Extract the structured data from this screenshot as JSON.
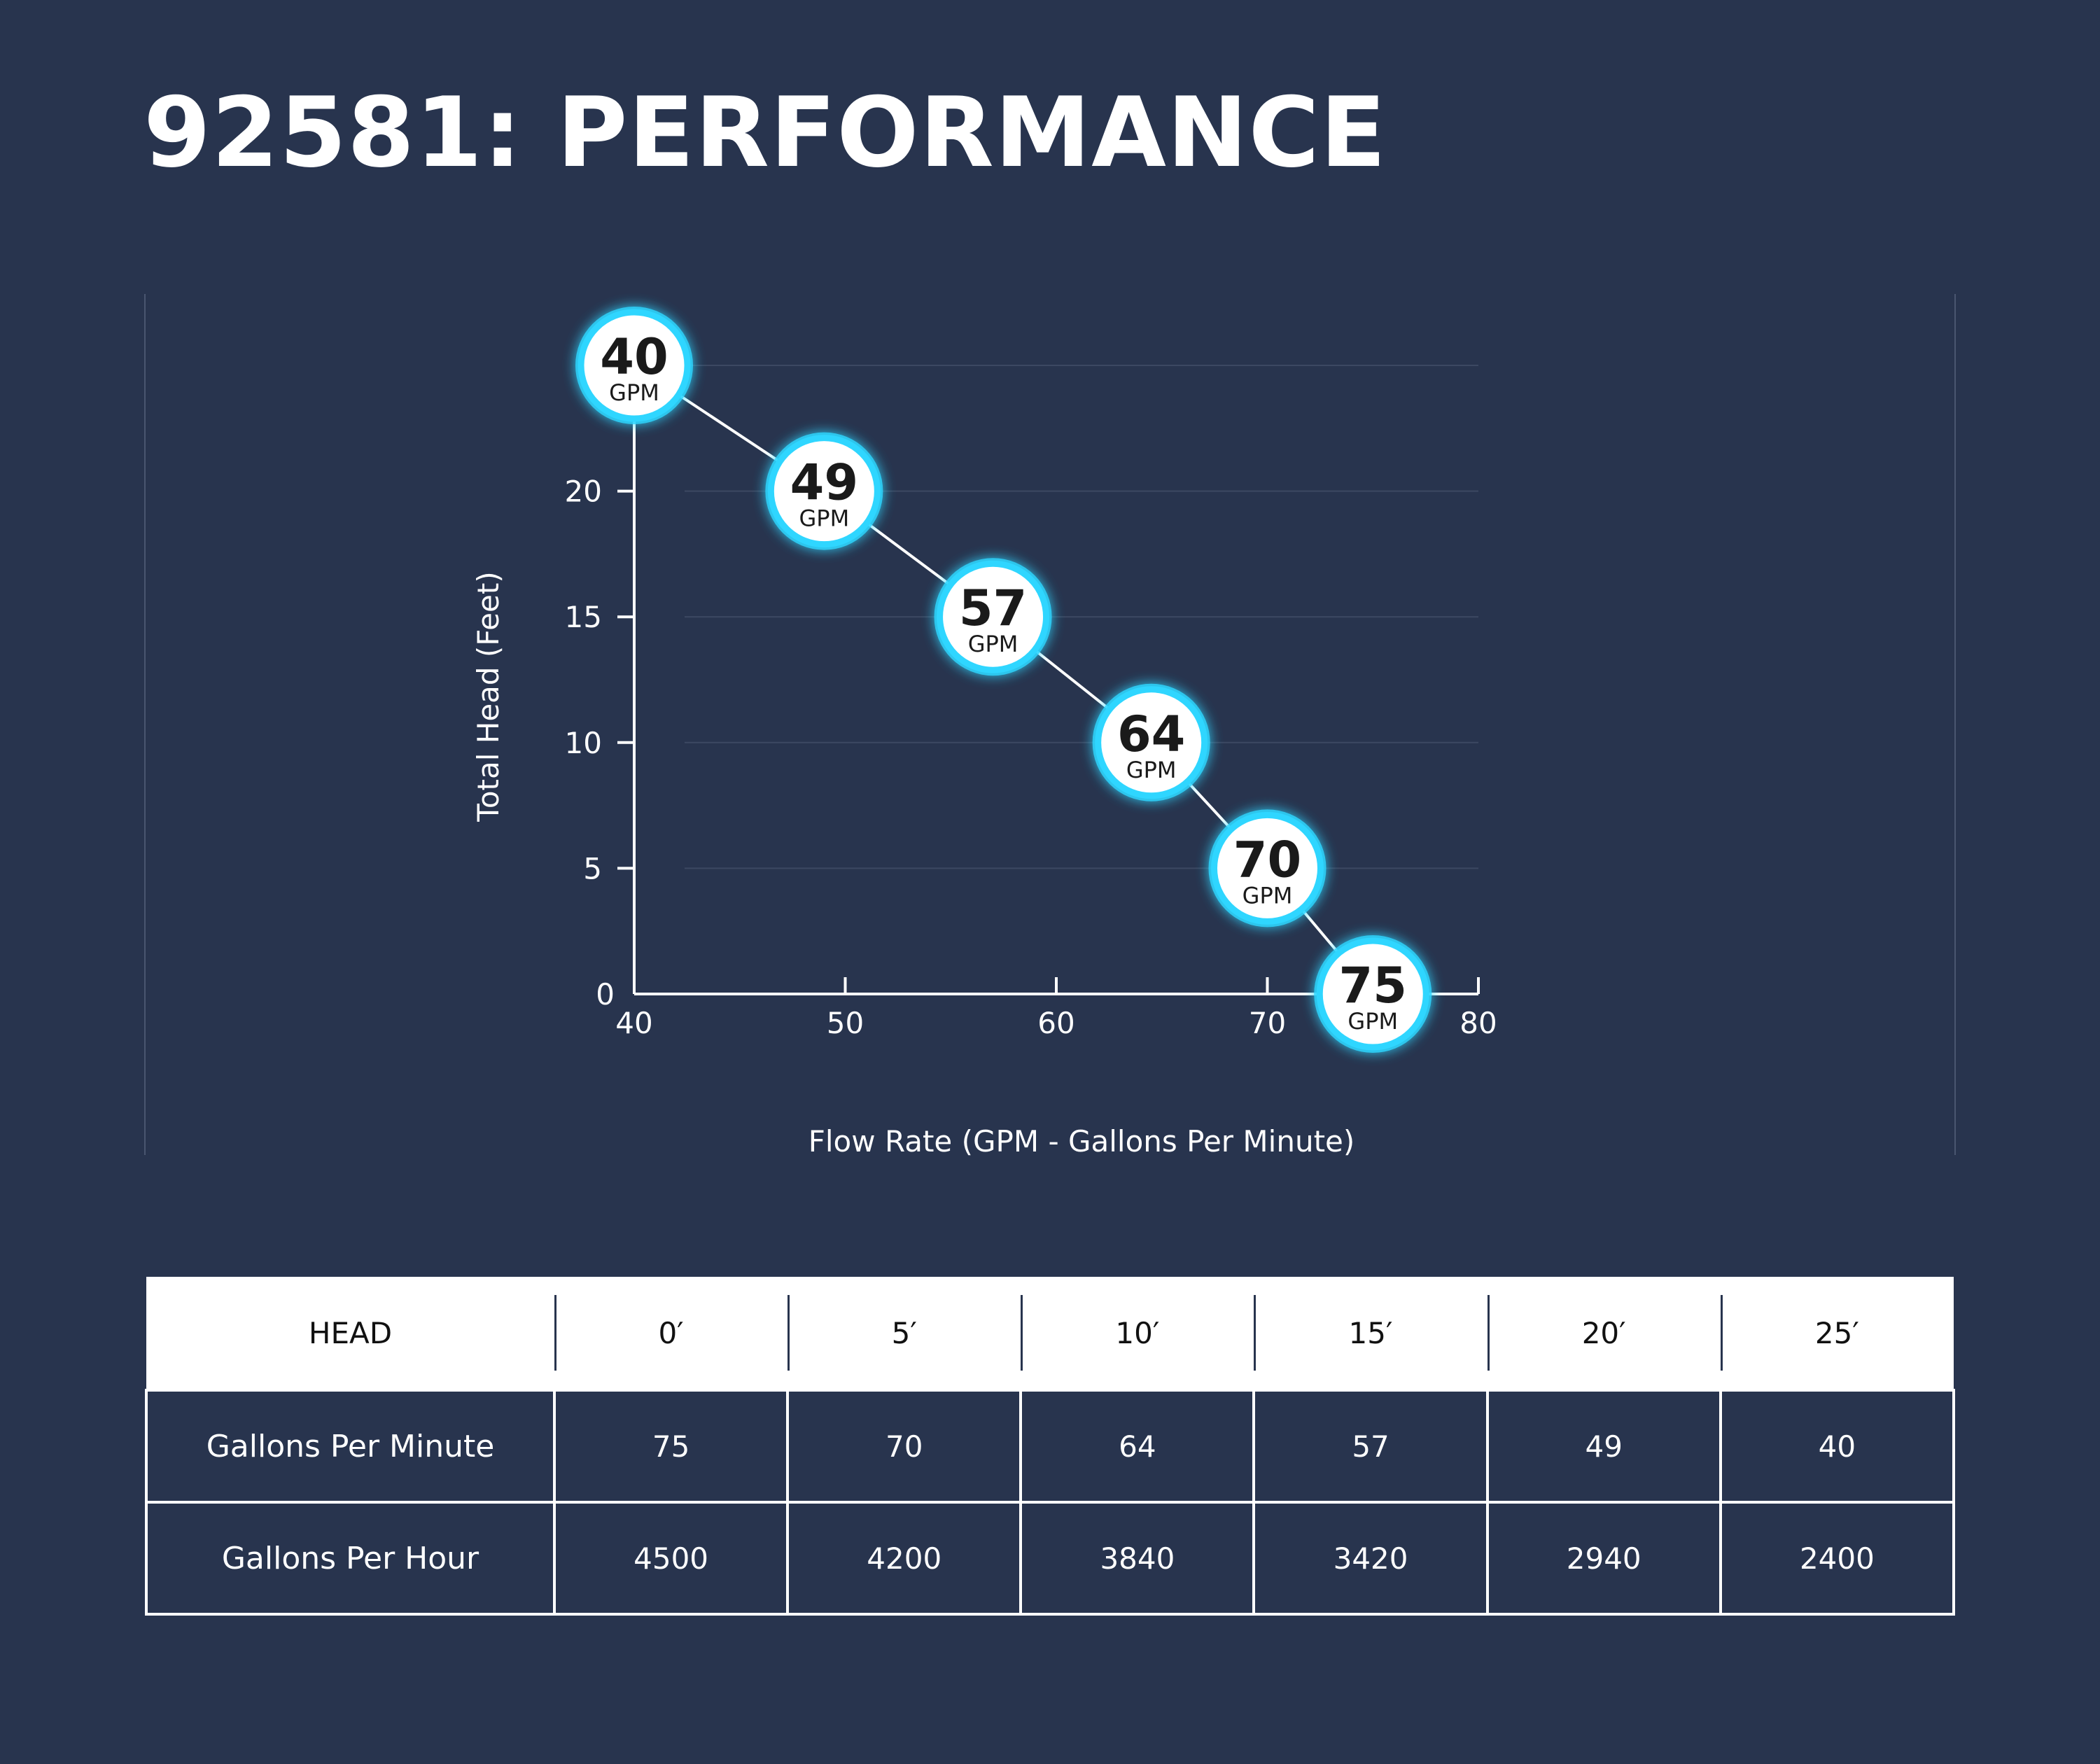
{
  "page": {
    "title": "92581: PERFORMANCE",
    "colors": {
      "background": "#28344e",
      "marker_ring": "#2fd6ff",
      "marker_fill": "#ffffff",
      "line": "#ffffff",
      "gridline": "#3c4862"
    }
  },
  "chart_data": {
    "type": "line",
    "title": "",
    "xlabel": "Flow Rate (GPM - Gallons Per Minute)",
    "ylabel": "Total Head (Feet)",
    "xlim": [
      40,
      80
    ],
    "ylim": [
      0,
      25
    ],
    "xticks": [
      40,
      50,
      60,
      70,
      80
    ],
    "yticks": [
      0,
      5,
      10,
      15,
      20
    ],
    "grid": true,
    "marker_unit": "GPM",
    "series": [
      {
        "points": [
          {
            "x": 40,
            "y": 25,
            "label": "40"
          },
          {
            "x": 49,
            "y": 20,
            "label": "49"
          },
          {
            "x": 57,
            "y": 15,
            "label": "57"
          },
          {
            "x": 64.5,
            "y": 10,
            "label": "64"
          },
          {
            "x": 70,
            "y": 5,
            "label": "70"
          },
          {
            "x": 75,
            "y": 0,
            "label": "75"
          }
        ]
      }
    ]
  },
  "table": {
    "header": [
      "HEAD",
      "0′",
      "5′",
      "10′",
      "15′",
      "20′",
      "25′"
    ],
    "rows": [
      {
        "label": "Gallons Per Minute",
        "values": [
          "75",
          "70",
          "64",
          "57",
          "49",
          "40"
        ]
      },
      {
        "label": "Gallons Per Hour",
        "values": [
          "4500",
          "4200",
          "3840",
          "3420",
          "2940",
          "2400"
        ]
      }
    ]
  }
}
